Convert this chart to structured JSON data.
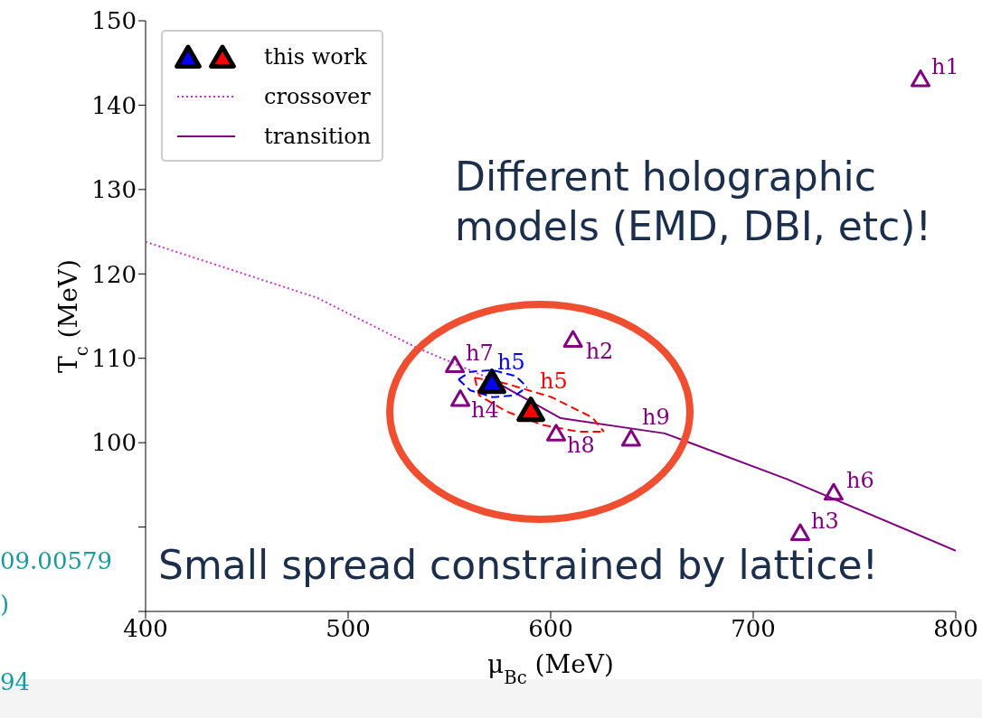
{
  "chart_data": {
    "type": "scatter",
    "xlabel": "μ$_{Bc}$ (MeV)",
    "ylabel": "T$_{c}$ (MeV)",
    "xlim": [
      400,
      800
    ],
    "xticks": [
      400,
      500,
      600,
      700,
      800
    ],
    "ylim": [
      80,
      150
    ],
    "yticks": [
      {
        "value": 80,
        "label": null
      },
      {
        "value": 90,
        "label": null
      },
      100,
      110,
      120,
      130,
      140,
      150
    ],
    "grid": false,
    "legend": "top left",
    "series": [
      {
        "name": "this work",
        "marker": "triangle",
        "x": [
          571,
          590.2
        ],
        "values": [
          107,
          103.7
        ],
        "colors": [
          "#0000ff",
          "#ff0000"
        ],
        "value_labels": [
          "h5",
          "h5"
        ]
      },
      {
        "marker": "triangle",
        "color": "#800080",
        "x": [
          782.6,
          611,
          552.7,
          555.4,
          602.7,
          639.7,
          739.7,
          723.2
        ],
        "values": [
          143,
          112.1,
          109.1,
          105.1,
          101,
          100.4,
          94,
          89.2
        ],
        "value_labels": [
          "h1",
          "h2",
          "h7",
          "h4",
          "h8",
          "h9",
          "h6",
          "h3"
        ]
      },
      {
        "name": "crossover",
        "type": "line",
        "line_style": "dotted",
        "color": "#cc33cc",
        "x": [
          400,
          484.4,
          533.5,
          569
        ],
        "values": [
          123.8,
          117.2,
          111.3,
          107.7
        ]
      },
      {
        "name": "transition",
        "type": "line",
        "line_style": "solid",
        "color": "#800080",
        "x": [
          569,
          605,
          656.3,
          716.5,
          800
        ],
        "values": [
          107.7,
          102.9,
          101.1,
          95.7,
          87.2
        ]
      },
      {
        "type": "line",
        "line_style": "dashed",
        "color": "#0000ff",
        "x": [
          554.5,
          560.3,
          571.4,
          582.6,
          588.4
        ],
        "values": [
          107.5,
          108.4,
          108.6,
          107.9,
          106.6
        ]
      },
      {
        "type": "line",
        "line_style": "dashed",
        "color": "#0000ff",
        "x": [
          554.5,
          560.3,
          571.4,
          582.6,
          588.4
        ],
        "values": [
          107.5,
          106.2,
          105.4,
          105.6,
          106.6
        ]
      },
      {
        "type": "line",
        "line_style": "dashed",
        "color": "#ff0000",
        "x": [
          562.5,
          578.1,
          600.4,
          620.5,
          626.3
        ],
        "values": [
          107.7,
          107,
          105.4,
          103,
          101.3
        ]
      },
      {
        "type": "line",
        "line_style": "dashed",
        "color": "#ff0000",
        "x": [
          562.5,
          564.7,
          578.1,
          596,
          613.8,
          626.3
        ],
        "values": [
          107.7,
          105.6,
          103.7,
          102.1,
          101.3,
          101.3
        ]
      }
    ],
    "annotations": [
      "Different holographic models (EMD, DBI, etc)!",
      "Small spread constrained by lattice!",
      "09.00579",
      ")",
      "94"
    ]
  }
}
